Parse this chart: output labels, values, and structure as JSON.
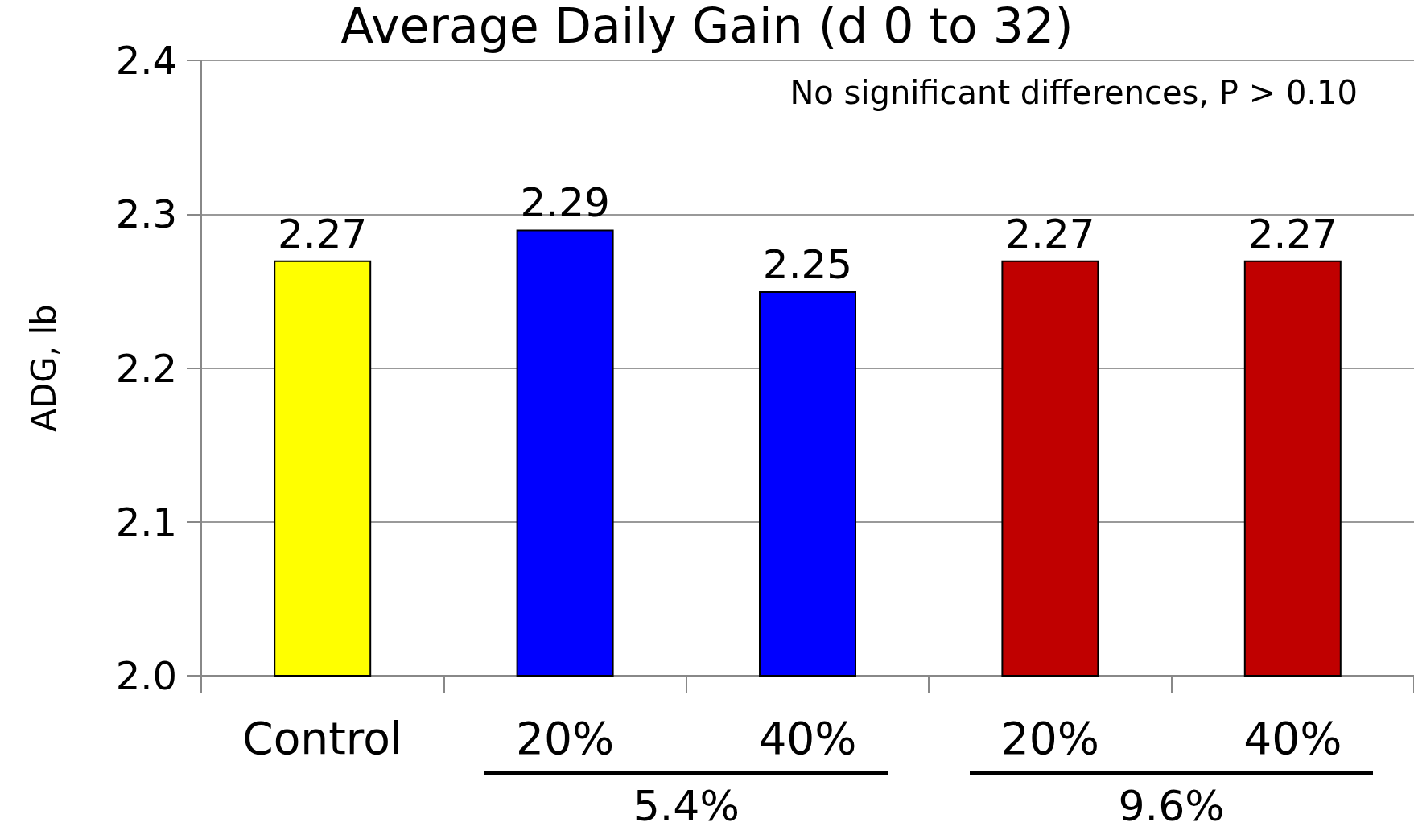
{
  "chart_data": {
    "type": "bar",
    "title": "Average Daily Gain (d 0 to 32)",
    "ylabel": "ADG, lb",
    "categories": [
      "Control",
      "20%",
      "40%",
      "20%",
      "40%"
    ],
    "values": [
      2.27,
      2.29,
      2.25,
      2.27,
      2.27
    ],
    "colors": [
      "#ffff00",
      "#0000ff",
      "#0000ff",
      "#c00000",
      "#c00000"
    ],
    "ylim": [
      2.0,
      2.4
    ],
    "yticks": [
      {
        "value": 2,
        "label": "2.0"
      },
      2.1,
      2.2,
      2.3,
      2.4
    ],
    "grid": "y",
    "data_labels": true,
    "annotations": [
      "No significant differences, P > 0.10",
      "5.4%",
      "9.6%"
    ]
  }
}
